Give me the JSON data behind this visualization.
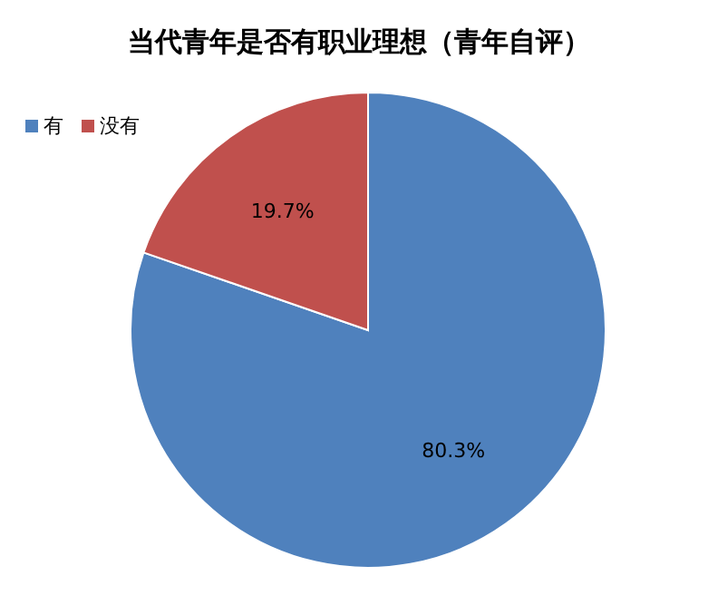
{
  "chart_data": {
    "type": "pie",
    "title": "当代青年是否有职业理想（青年自评）",
    "categories": [
      "有",
      "没有"
    ],
    "values": [
      80.3,
      19.7
    ],
    "colors": [
      "#4f81bd",
      "#c0504d"
    ],
    "value_labels": [
      "80.3%",
      "19.7%"
    ],
    "legend": "top left"
  }
}
